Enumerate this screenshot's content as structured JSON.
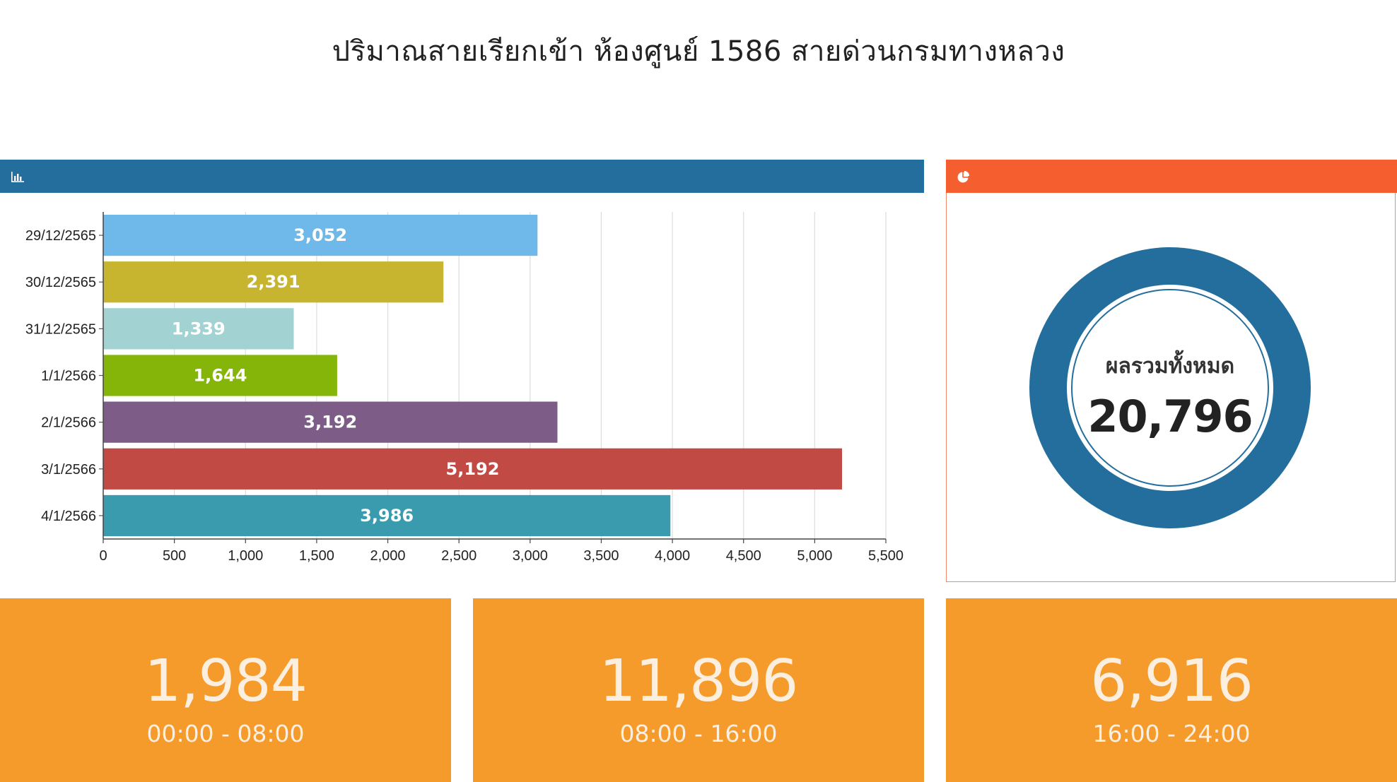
{
  "page_title": "ปริมาณสายเรียกเข้า ห้องศูนย์ 1586 สายด่วนกรมทางหลวง",
  "colors": {
    "bar_header": "#236e9c",
    "total_header": "#f55e2f",
    "card_background": "#f59b2c",
    "donut": "#236e9c"
  },
  "header_icons": {
    "bar_panel": "bar-chart-icon",
    "total_panel": "pie-chart-icon"
  },
  "chart_data": {
    "type": "bar",
    "orientation": "horizontal",
    "categories": [
      "29/12/2565",
      "30/12/2565",
      "31/12/2565",
      "1/1/2566",
      "2/1/2566",
      "3/1/2566",
      "4/1/2566"
    ],
    "values": [
      3052,
      2391,
      1339,
      1644,
      3192,
      5192,
      3986
    ],
    "value_labels": [
      "3,052",
      "2,391",
      "1,339",
      "1,644",
      "3,192",
      "5,192",
      "3,986"
    ],
    "bar_colors": [
      "#6fb9ea",
      "#c8b52f",
      "#a3d2d2",
      "#86b50a",
      "#7d5d87",
      "#c24a45",
      "#3a9bae"
    ],
    "xlim": [
      0,
      5500
    ],
    "x_ticks": [
      0,
      500,
      1000,
      1500,
      2000,
      2500,
      3000,
      3500,
      4000,
      4500,
      5000,
      5500
    ],
    "x_tick_labels": [
      "0",
      "500",
      "1,000",
      "1,500",
      "2,000",
      "2,500",
      "3,000",
      "3,500",
      "4,000",
      "4,500",
      "5,000",
      "5,500"
    ],
    "grid": "vertical",
    "title": "",
    "xlabel": "",
    "ylabel": ""
  },
  "total": {
    "label": "ผลรวมทั้งหมด",
    "value": "20,796"
  },
  "time_slots": [
    {
      "value": "1,984",
      "range": "00:00 - 08:00"
    },
    {
      "value": "11,896",
      "range": "08:00 - 16:00"
    },
    {
      "value": "6,916",
      "range": "16:00 - 24:00"
    }
  ]
}
